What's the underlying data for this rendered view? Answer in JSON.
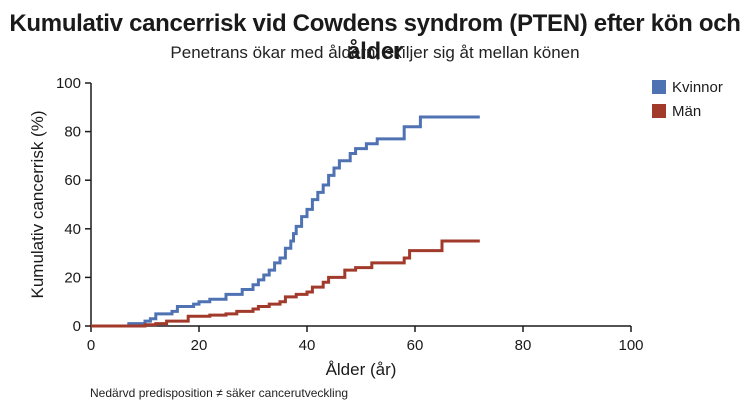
{
  "chart_data": {
    "type": "line",
    "step": true,
    "title": "Kumulativ cancerrisk vid Cowdens syndrom (PTEN) efter kön och ålder",
    "subtitle": "Penetrans ökar med åldern, skiljer sig åt mellan könen",
    "xlabel": "Ålder (år)",
    "ylabel": "Kumulativ cancerrisk (%)",
    "xlim": [
      0,
      100
    ],
    "ylim": [
      0,
      100
    ],
    "xticks": [
      0,
      20,
      40,
      60,
      80,
      100
    ],
    "yticks": [
      0,
      20,
      40,
      60,
      80,
      100
    ],
    "grid": false,
    "legend_position": "top-right",
    "footnote": "Nedärvd predisposition ≠ säker cancerutveckling",
    "series": [
      {
        "name": "Kvinnor",
        "color": "#4f72b3",
        "points": [
          [
            0,
            0
          ],
          [
            7,
            1
          ],
          [
            10,
            2
          ],
          [
            11,
            3
          ],
          [
            12,
            5
          ],
          [
            15,
            6
          ],
          [
            16,
            8
          ],
          [
            19,
            9
          ],
          [
            20,
            10
          ],
          [
            22,
            11
          ],
          [
            25,
            13
          ],
          [
            28,
            15
          ],
          [
            30,
            17
          ],
          [
            31,
            19
          ],
          [
            32,
            21
          ],
          [
            33,
            23
          ],
          [
            34,
            26
          ],
          [
            35,
            28
          ],
          [
            36,
            32
          ],
          [
            37,
            35
          ],
          [
            37.5,
            38
          ],
          [
            38,
            41
          ],
          [
            39,
            45
          ],
          [
            40,
            48
          ],
          [
            41,
            52
          ],
          [
            42,
            55
          ],
          [
            43,
            58
          ],
          [
            44,
            62
          ],
          [
            45,
            65
          ],
          [
            46,
            68
          ],
          [
            48,
            71
          ],
          [
            49,
            73
          ],
          [
            51,
            75
          ],
          [
            53,
            77
          ],
          [
            58,
            82
          ],
          [
            61,
            86
          ],
          [
            72,
            86
          ]
        ]
      },
      {
        "name": "Män",
        "color": "#a23a2b",
        "points": [
          [
            0,
            0
          ],
          [
            10,
            0.5
          ],
          [
            12,
            1
          ],
          [
            14,
            2
          ],
          [
            18,
            4
          ],
          [
            22,
            4.5
          ],
          [
            25,
            5
          ],
          [
            27,
            6
          ],
          [
            30,
            7
          ],
          [
            31,
            8
          ],
          [
            33,
            9
          ],
          [
            35,
            10
          ],
          [
            36,
            12
          ],
          [
            38,
            13
          ],
          [
            40,
            14
          ],
          [
            41,
            16
          ],
          [
            43,
            18
          ],
          [
            44,
            20
          ],
          [
            47,
            23
          ],
          [
            49,
            24
          ],
          [
            52,
            26
          ],
          [
            58,
            28
          ],
          [
            59,
            31
          ],
          [
            65,
            35
          ],
          [
            72,
            35
          ]
        ]
      }
    ]
  }
}
